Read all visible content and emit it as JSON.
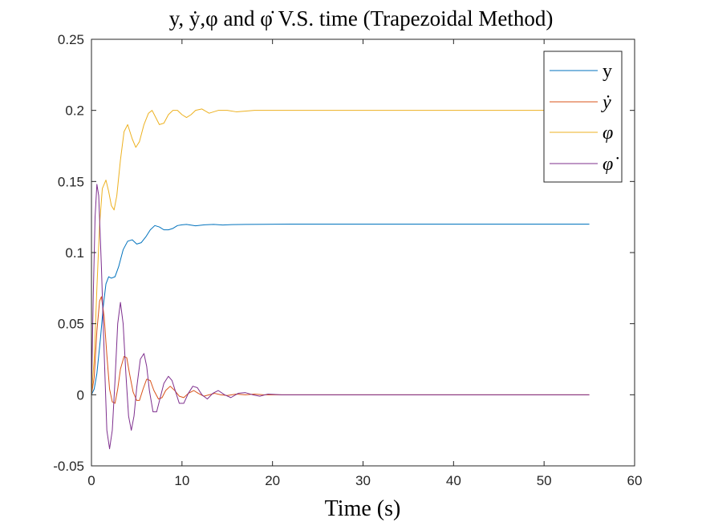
{
  "chart_data": {
    "type": "line",
    "title": "y, ẏ,φ and φ̇ V.S. time (Trapezoidal Method)",
    "xlabel": "Time (s)",
    "ylabel": "",
    "xlim": [
      0,
      60
    ],
    "ylim": [
      -0.05,
      0.25
    ],
    "x_ticks": [
      0,
      10,
      20,
      30,
      40,
      50,
      60
    ],
    "x_tick_labels": [
      "0",
      "10",
      "20",
      "30",
      "40",
      "50",
      "60"
    ],
    "y_ticks": [
      -0.05,
      0,
      0.05,
      0.1,
      0.15,
      0.2,
      0.25
    ],
    "y_tick_labels": [
      "-0.05",
      "0",
      "0.05",
      "0.1",
      "0.15",
      "0.2",
      "0.25"
    ],
    "grid": false,
    "legend_position": "top-right",
    "series": [
      {
        "name": "y",
        "color": "#0072BD",
        "points": [
          [
            0,
            0
          ],
          [
            0.3,
            0.004
          ],
          [
            0.6,
            0.015
          ],
          [
            1.0,
            0.04
          ],
          [
            1.3,
            0.062
          ],
          [
            1.6,
            0.078
          ],
          [
            1.9,
            0.083
          ],
          [
            2.2,
            0.082
          ],
          [
            2.6,
            0.083
          ],
          [
            3.0,
            0.09
          ],
          [
            3.5,
            0.102
          ],
          [
            4.0,
            0.108
          ],
          [
            4.5,
            0.109
          ],
          [
            5.0,
            0.106
          ],
          [
            5.5,
            0.107
          ],
          [
            6.0,
            0.111
          ],
          [
            6.5,
            0.116
          ],
          [
            7.0,
            0.119
          ],
          [
            7.5,
            0.118
          ],
          [
            8.0,
            0.116
          ],
          [
            8.5,
            0.116
          ],
          [
            9.0,
            0.117
          ],
          [
            9.5,
            0.119
          ],
          [
            10.0,
            0.1195
          ],
          [
            10.5,
            0.1198
          ],
          [
            11.5,
            0.1188
          ],
          [
            12.5,
            0.1195
          ],
          [
            13.5,
            0.1198
          ],
          [
            14.5,
            0.1194
          ],
          [
            15.5,
            0.1197
          ],
          [
            17,
            0.1198
          ],
          [
            19,
            0.1199
          ],
          [
            22,
            0.12
          ],
          [
            30,
            0.12
          ],
          [
            40,
            0.12
          ],
          [
            55,
            0.12
          ]
        ]
      },
      {
        "name": "ẏ",
        "color": "#D95319",
        "points": [
          [
            0,
            0
          ],
          [
            0.3,
            0.012
          ],
          [
            0.6,
            0.045
          ],
          [
            0.9,
            0.066
          ],
          [
            1.1,
            0.069
          ],
          [
            1.4,
            0.055
          ],
          [
            1.7,
            0.028
          ],
          [
            2.0,
            0.004
          ],
          [
            2.3,
            -0.005
          ],
          [
            2.6,
            -0.006
          ],
          [
            2.9,
            0.004
          ],
          [
            3.2,
            0.018
          ],
          [
            3.6,
            0.027
          ],
          [
            3.9,
            0.026
          ],
          [
            4.2,
            0.015
          ],
          [
            4.6,
            0.002
          ],
          [
            5.0,
            -0.004
          ],
          [
            5.3,
            -0.004
          ],
          [
            5.7,
            0.004
          ],
          [
            6.1,
            0.011
          ],
          [
            6.5,
            0.01
          ],
          [
            6.9,
            0.003
          ],
          [
            7.4,
            -0.003
          ],
          [
            7.8,
            -0.002
          ],
          [
            8.2,
            0.003
          ],
          [
            8.7,
            0.006
          ],
          [
            9.2,
            0.003
          ],
          [
            9.7,
            -0.001
          ],
          [
            10.2,
            -0.002
          ],
          [
            10.7,
            0.001
          ],
          [
            11.3,
            0.003
          ],
          [
            11.8,
            0.001
          ],
          [
            12.4,
            -0.001
          ],
          [
            13.0,
            0.0
          ],
          [
            13.6,
            0.001
          ],
          [
            14.3,
            0.0
          ],
          [
            15.0,
            -0.0005
          ],
          [
            16,
            0.0005
          ],
          [
            17,
            0
          ],
          [
            18,
            0.0005
          ],
          [
            19,
            0
          ],
          [
            22,
            0
          ],
          [
            30,
            0
          ],
          [
            40,
            0
          ],
          [
            55,
            0
          ]
        ]
      },
      {
        "name": "φ",
        "color": "#EDB120",
        "points": [
          [
            0,
            0
          ],
          [
            0.3,
            0.025
          ],
          [
            0.6,
            0.075
          ],
          [
            0.9,
            0.12
          ],
          [
            1.2,
            0.145
          ],
          [
            1.6,
            0.151
          ],
          [
            1.9,
            0.143
          ],
          [
            2.2,
            0.133
          ],
          [
            2.5,
            0.13
          ],
          [
            2.8,
            0.14
          ],
          [
            3.2,
            0.165
          ],
          [
            3.6,
            0.185
          ],
          [
            4.0,
            0.19
          ],
          [
            4.5,
            0.18
          ],
          [
            4.9,
            0.174
          ],
          [
            5.3,
            0.178
          ],
          [
            5.8,
            0.19
          ],
          [
            6.3,
            0.198
          ],
          [
            6.7,
            0.2
          ],
          [
            7.1,
            0.195
          ],
          [
            7.5,
            0.19
          ],
          [
            8.0,
            0.191
          ],
          [
            8.5,
            0.197
          ],
          [
            9.0,
            0.2
          ],
          [
            9.5,
            0.2
          ],
          [
            10.0,
            0.197
          ],
          [
            10.5,
            0.195
          ],
          [
            11.0,
            0.197
          ],
          [
            11.5,
            0.2
          ],
          [
            12.2,
            0.201
          ],
          [
            13.0,
            0.198
          ],
          [
            14.0,
            0.2
          ],
          [
            15.0,
            0.2
          ],
          [
            16,
            0.199
          ],
          [
            18,
            0.2
          ],
          [
            20,
            0.2
          ],
          [
            30,
            0.2
          ],
          [
            40,
            0.2
          ],
          [
            55,
            0.2
          ]
        ]
      },
      {
        "name": "φ̇",
        "color": "#7E2F8E",
        "points": [
          [
            0,
            0
          ],
          [
            0.2,
            0.07
          ],
          [
            0.4,
            0.125
          ],
          [
            0.6,
            0.148
          ],
          [
            0.8,
            0.14
          ],
          [
            1.1,
            0.09
          ],
          [
            1.4,
            0.03
          ],
          [
            1.7,
            -0.025
          ],
          [
            2.0,
            -0.038
          ],
          [
            2.3,
            -0.025
          ],
          [
            2.6,
            0.01
          ],
          [
            2.9,
            0.05
          ],
          [
            3.2,
            0.065
          ],
          [
            3.5,
            0.05
          ],
          [
            3.8,
            0.015
          ],
          [
            4.1,
            -0.015
          ],
          [
            4.4,
            -0.025
          ],
          [
            4.7,
            -0.015
          ],
          [
            5.0,
            0.005
          ],
          [
            5.4,
            0.025
          ],
          [
            5.8,
            0.029
          ],
          [
            6.1,
            0.02
          ],
          [
            6.4,
            0.003
          ],
          [
            6.8,
            -0.012
          ],
          [
            7.2,
            -0.012
          ],
          [
            7.6,
            -0.002
          ],
          [
            8.0,
            0.008
          ],
          [
            8.5,
            0.013
          ],
          [
            8.9,
            0.01
          ],
          [
            9.3,
            0.002
          ],
          [
            9.7,
            -0.006
          ],
          [
            10.2,
            -0.006
          ],
          [
            10.7,
            0.001
          ],
          [
            11.2,
            0.006
          ],
          [
            11.7,
            0.005
          ],
          [
            12.2,
            0.0
          ],
          [
            12.8,
            -0.003
          ],
          [
            13.4,
            0.001
          ],
          [
            14.0,
            0.003
          ],
          [
            14.7,
            0.0
          ],
          [
            15.4,
            -0.002
          ],
          [
            16.2,
            0.001
          ],
          [
            17.0,
            0.0015
          ],
          [
            17.8,
            0
          ],
          [
            18.6,
            -0.001
          ],
          [
            19.5,
            0.0005
          ],
          [
            21,
            0
          ],
          [
            25,
            0
          ],
          [
            30,
            0
          ],
          [
            40,
            0
          ],
          [
            55,
            0
          ]
        ]
      }
    ]
  }
}
